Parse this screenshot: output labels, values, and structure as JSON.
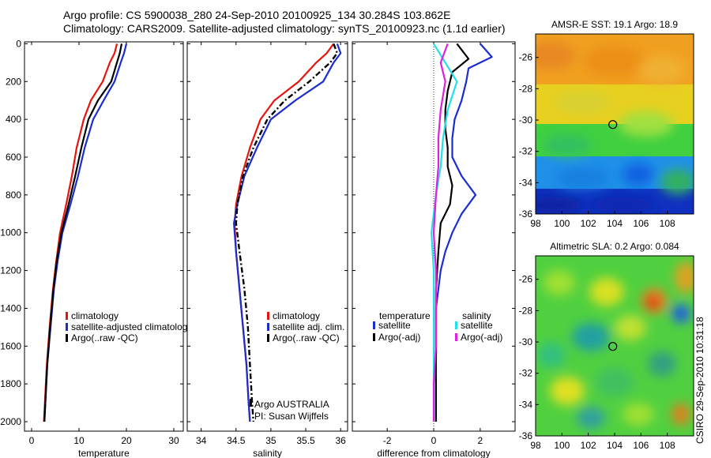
{
  "titles": {
    "line1": "Argo profile: CS 5900038_280 24-Sep-2010 20100925_134 30.284S 103.862E",
    "line2": "Climatology: CARS2009. Satellite-adjusted climatology: synTS_20100923.nc (1.1d earlier)"
  },
  "credit": "CSIRO 29-Sep-2010 10:31:18",
  "colors": {
    "climatology": "#e8130c",
    "satellite": "#1a2ecf",
    "argo": "#000000",
    "sal_satellite": "#20e0e8",
    "sal_argo": "#e020e0"
  },
  "chart_data": [
    {
      "type": "line",
      "id": "temperature",
      "xlabel": "temperature",
      "ylabel": "",
      "xlim": [
        -1.5,
        32
      ],
      "ylim": [
        2050,
        -10
      ],
      "y_reversed": true,
      "x_ticks": [
        0,
        10,
        20,
        30
      ],
      "y_ticks": [
        0,
        200,
        400,
        600,
        800,
        1000,
        1200,
        1400,
        1600,
        1800,
        2000
      ],
      "legend": [
        "climatology",
        "satellite-adjusted climatolog",
        "Argo(..raw -QC)"
      ],
      "series": [
        {
          "name": "climatology",
          "dash": "solid",
          "color_key": "climatology",
          "points": [
            [
              18.0,
              0
            ],
            [
              17.5,
              50
            ],
            [
              16.5,
              100
            ],
            [
              15.0,
              200
            ],
            [
              12.5,
              300
            ],
            [
              11.0,
              400
            ],
            [
              9.5,
              550
            ],
            [
              8.5,
              700
            ],
            [
              7.3,
              850
            ],
            [
              6.0,
              1000
            ],
            [
              5.2,
              1150
            ],
            [
              4.5,
              1300
            ],
            [
              3.8,
              1500
            ],
            [
              3.2,
              1700
            ],
            [
              2.8,
              1900
            ],
            [
              2.6,
              2000
            ]
          ]
        },
        {
          "name": "satellite-adjusted climatolog",
          "dash": "solid",
          "color_key": "satellite",
          "points": [
            [
              20.0,
              0
            ],
            [
              19.5,
              50
            ],
            [
              18.8,
              100
            ],
            [
              17.5,
              200
            ],
            [
              15.2,
              300
            ],
            [
              13.0,
              400
            ],
            [
              11.2,
              550
            ],
            [
              9.8,
              700
            ],
            [
              8.2,
              850
            ],
            [
              6.5,
              1000
            ],
            [
              5.5,
              1150
            ],
            [
              4.7,
              1300
            ],
            [
              4.0,
              1500
            ],
            [
              3.3,
              1700
            ],
            [
              2.9,
              1900
            ],
            [
              2.7,
              2000
            ]
          ]
        },
        {
          "name": "Argo(..raw -QC)",
          "dash": "solid",
          "color_key": "argo",
          "points": [
            [
              19.0,
              0
            ],
            [
              18.6,
              50
            ],
            [
              18.0,
              100
            ],
            [
              16.8,
              200
            ],
            [
              14.0,
              300
            ],
            [
              12.0,
              400
            ],
            [
              10.5,
              550
            ],
            [
              9.2,
              700
            ],
            [
              7.8,
              850
            ],
            [
              6.3,
              1000
            ],
            [
              5.3,
              1150
            ],
            [
              4.6,
              1300
            ],
            [
              3.9,
              1500
            ],
            [
              3.3,
              1700
            ],
            [
              2.9,
              1900
            ],
            [
              2.7,
              2000
            ]
          ]
        }
      ]
    },
    {
      "type": "line",
      "id": "salinity",
      "xlabel": "salinity",
      "ylabel": "",
      "xlim": [
        33.8,
        36.1
      ],
      "ylim": [
        2050,
        -10
      ],
      "y_reversed": true,
      "x_ticks": [
        34,
        34.5,
        35,
        35.5,
        36
      ],
      "legend": [
        "climatology",
        "satellite adj. clim.",
        "Argo(..raw -QC)"
      ],
      "annotations": [
        "Argo AUSTRALIA",
        "PI: Susan Wijffels"
      ],
      "series": [
        {
          "name": "climatology",
          "dash": "solid",
          "color_key": "climatology",
          "points": [
            [
              35.9,
              0
            ],
            [
              35.8,
              50
            ],
            [
              35.65,
              100
            ],
            [
              35.4,
              200
            ],
            [
              35.05,
              300
            ],
            [
              34.85,
              400
            ],
            [
              34.7,
              550
            ],
            [
              34.58,
              700
            ],
            [
              34.5,
              850
            ],
            [
              34.48,
              950
            ],
            [
              34.5,
              1100
            ],
            [
              34.55,
              1300
            ],
            [
              34.6,
              1500
            ],
            [
              34.65,
              1700
            ],
            [
              34.68,
              1900
            ],
            [
              34.7,
              2000
            ]
          ]
        },
        {
          "name": "satellite adj. clim.",
          "dash": "solid",
          "color_key": "satellite",
          "points": [
            [
              35.95,
              0
            ],
            [
              36.0,
              50
            ],
            [
              35.9,
              100
            ],
            [
              35.75,
              200
            ],
            [
              35.35,
              300
            ],
            [
              35.0,
              400
            ],
            [
              34.8,
              550
            ],
            [
              34.62,
              700
            ],
            [
              34.52,
              850
            ],
            [
              34.47,
              950
            ],
            [
              34.5,
              1100
            ],
            [
              34.55,
              1300
            ],
            [
              34.6,
              1500
            ],
            [
              34.65,
              1700
            ],
            [
              34.68,
              1900
            ],
            [
              34.7,
              2000
            ]
          ]
        },
        {
          "name": "Argo(..raw -QC)",
          "dash": "dashdot",
          "color_key": "argo",
          "points": [
            [
              35.9,
              0
            ],
            [
              35.95,
              50
            ],
            [
              35.85,
              100
            ],
            [
              35.55,
              200
            ],
            [
              35.2,
              300
            ],
            [
              34.95,
              400
            ],
            [
              34.75,
              550
            ],
            [
              34.6,
              700
            ],
            [
              34.52,
              850
            ],
            [
              34.5,
              950
            ],
            [
              34.55,
              1100
            ],
            [
              34.62,
              1300
            ],
            [
              34.67,
              1500
            ],
            [
              34.7,
              1700
            ],
            [
              34.73,
              1900
            ],
            [
              34.75,
              2000
            ]
          ]
        }
      ]
    },
    {
      "type": "line",
      "id": "difference",
      "xlabel": "difference from climatology",
      "ylabel": "",
      "xlim": [
        -3.5,
        3.5
      ],
      "ylim": [
        2050,
        -10
      ],
      "y_reversed": true,
      "x_ticks": [
        -2,
        0,
        2
      ],
      "zero_line": true,
      "legend_headers": [
        "temperature",
        "salinity"
      ],
      "legend": [
        "satellite",
        "Argo(-adj)",
        "satellite",
        "Argo(-adj)"
      ],
      "series": [
        {
          "name": "satellite",
          "group": "temperature",
          "color_key": "satellite",
          "points": [
            [
              2.0,
              0
            ],
            [
              2.5,
              70
            ],
            [
              1.5,
              130
            ],
            [
              1.4,
              200
            ],
            [
              1.2,
              300
            ],
            [
              0.9,
              400
            ],
            [
              0.8,
              500
            ],
            [
              0.8,
              600
            ],
            [
              1.2,
              700
            ],
            [
              1.8,
              800
            ],
            [
              1.2,
              900
            ],
            [
              0.8,
              1000
            ],
            [
              0.5,
              1100
            ],
            [
              0.3,
              1200
            ],
            [
              0.1,
              1400
            ],
            [
              0.1,
              1600
            ],
            [
              0.1,
              1800
            ],
            [
              0.1,
              2000
            ]
          ]
        },
        {
          "name": "Argo(-adj)",
          "group": "temperature",
          "color_key": "argo",
          "points": [
            [
              1.0,
              0
            ],
            [
              1.5,
              80
            ],
            [
              0.8,
              150
            ],
            [
              0.6,
              250
            ],
            [
              0.5,
              350
            ],
            [
              0.5,
              450
            ],
            [
              0.6,
              550
            ],
            [
              0.6,
              650
            ],
            [
              0.8,
              750
            ],
            [
              0.7,
              850
            ],
            [
              0.3,
              950
            ],
            [
              0.2,
              1100
            ],
            [
              0.1,
              1300
            ],
            [
              0.1,
              1500
            ],
            [
              0.1,
              1700
            ],
            [
              0.1,
              1900
            ],
            [
              0.1,
              2000
            ]
          ]
        },
        {
          "name": "satellite",
          "group": "salinity",
          "color_key": "sal_satellite",
          "points": [
            [
              0.0,
              0
            ],
            [
              0.5,
              100
            ],
            [
              1.0,
              200
            ],
            [
              0.6,
              350
            ],
            [
              0.4,
              500
            ],
            [
              0.3,
              650
            ],
            [
              0.1,
              800
            ],
            [
              -0.1,
              1000
            ],
            [
              0.0,
              1200
            ],
            [
              0.0,
              1400
            ],
            [
              0.0,
              1600
            ],
            [
              0.0,
              1800
            ],
            [
              0.0,
              2000
            ]
          ]
        },
        {
          "name": "Argo(-adj)",
          "group": "salinity",
          "color_key": "sal_argo",
          "points": [
            [
              0.6,
              0
            ],
            [
              0.3,
              100
            ],
            [
              0.5,
              200
            ],
            [
              0.3,
              350
            ],
            [
              0.2,
              500
            ],
            [
              0.2,
              650
            ],
            [
              0.1,
              800
            ],
            [
              0.0,
              1000
            ],
            [
              0.1,
              1200
            ],
            [
              0.1,
              1400
            ],
            [
              0.1,
              1600
            ],
            [
              0.0,
              1800
            ],
            [
              0.0,
              2000
            ]
          ]
        }
      ]
    },
    {
      "type": "heatmap",
      "id": "sst-map",
      "title": "AMSR-E SST: 19.1 Argo: 18.9",
      "xlim": [
        98,
        110
      ],
      "ylim": [
        -36,
        -24.5
      ],
      "x_ticks": [
        98,
        100,
        102,
        104,
        106,
        108
      ],
      "y_ticks": [
        -26,
        -28,
        -30,
        -32,
        -34,
        -36
      ],
      "marker": [
        103.862,
        -30.284
      ]
    },
    {
      "type": "heatmap",
      "id": "sla-map",
      "title": "Altimetric SLA: 0.2 Argo: 0.084",
      "xlim": [
        98,
        110
      ],
      "ylim": [
        -36,
        -24.5
      ],
      "x_ticks": [
        98,
        100,
        102,
        104,
        106,
        108
      ],
      "y_ticks": [
        -26,
        -28,
        -30,
        -32,
        -34,
        -36
      ],
      "marker": [
        103.862,
        -30.284
      ]
    }
  ]
}
